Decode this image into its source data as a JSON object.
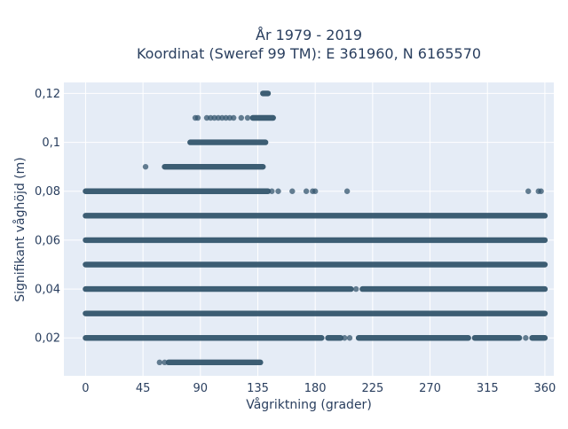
{
  "chart_data": {
    "type": "scatter",
    "title_line1": "År 1979 - 2019",
    "title_line2": "Koordinat (Sweref 99 TM): E 361960, N 6165570",
    "xlabel": "Vågriktning (grader)",
    "ylabel": "Signifikant våghöjd (m)",
    "xlim": [
      -17,
      367
    ],
    "ylim": [
      0.0045,
      0.1245
    ],
    "x_ticks": [
      {
        "value": 0,
        "label": "0"
      },
      {
        "value": 45,
        "label": "45"
      },
      {
        "value": 90,
        "label": "90"
      },
      {
        "value": 135,
        "label": "135"
      },
      {
        "value": 180,
        "label": "180"
      },
      {
        "value": 225,
        "label": "225"
      },
      {
        "value": 270,
        "label": "270"
      },
      {
        "value": 315,
        "label": "315"
      },
      {
        "value": 360,
        "label": "360"
      }
    ],
    "y_ticks": [
      {
        "value": 0.02,
        "label": "0,02"
      },
      {
        "value": 0.04,
        "label": "0,04"
      },
      {
        "value": 0.06,
        "label": "0,06"
      },
      {
        "value": 0.08,
        "label": "0,08"
      },
      {
        "value": 0.1,
        "label": "0,1"
      },
      {
        "value": 0.12,
        "label": "0,12"
      }
    ],
    "grid": true,
    "marker_color": "#34566d",
    "plot_bg": "#e5ecf6",
    "series": [
      {
        "rows": [
          {
            "y": 0.12,
            "ranges": [
              [
                139,
                143
              ]
            ],
            "points": []
          },
          {
            "y": 0.11,
            "ranges": [
              [
                131,
                147
              ]
            ],
            "points": [
              86,
              88,
              95,
              98,
              101,
              104,
              107,
              110,
              113,
              116,
              122,
              127
            ]
          },
          {
            "y": 0.1,
            "ranges": [
              [
                82,
                141
              ]
            ],
            "points": []
          },
          {
            "y": 0.09,
            "ranges": [
              [
                62,
                139
              ]
            ],
            "points": [
              47
            ]
          },
          {
            "y": 0.08,
            "ranges": [
              [
                0,
                143
              ]
            ],
            "points": [
              146,
              151,
              162,
              173,
              178,
              180,
              205,
              347,
              355,
              357
            ]
          },
          {
            "y": 0.07,
            "ranges": [
              [
                0,
                360
              ]
            ],
            "points": []
          },
          {
            "y": 0.06,
            "ranges": [
              [
                0,
                360
              ]
            ],
            "points": []
          },
          {
            "y": 0.05,
            "ranges": [
              [
                0,
                360
              ]
            ],
            "points": []
          },
          {
            "y": 0.04,
            "ranges": [
              [
                0,
                208
              ],
              [
                217,
                360
              ]
            ],
            "points": [
              212
            ]
          },
          {
            "y": 0.03,
            "ranges": [
              [
                0,
                360
              ]
            ],
            "points": []
          },
          {
            "y": 0.02,
            "ranges": [
              [
                0,
                185
              ],
              [
                190,
                200
              ],
              [
                214,
                300
              ],
              [
                305,
                340
              ],
              [
                350,
                360
              ]
            ],
            "points": [
              203,
              207,
              345
            ]
          },
          {
            "y": 0.01,
            "ranges": [
              [
                65,
                137
              ]
            ],
            "points": [
              58,
              62
            ]
          }
        ]
      }
    ]
  }
}
